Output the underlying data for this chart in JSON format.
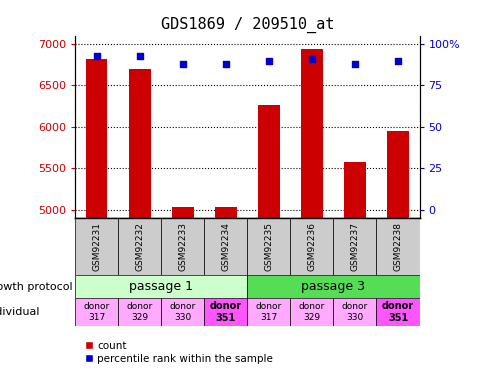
{
  "title": "GDS1869 / 209510_at",
  "samples": [
    "GSM92231",
    "GSM92232",
    "GSM92233",
    "GSM92234",
    "GSM92235",
    "GSM92236",
    "GSM92237",
    "GSM92238"
  ],
  "counts": [
    6820,
    6700,
    5030,
    5040,
    6270,
    6940,
    5580,
    5950
  ],
  "percentiles": [
    93,
    93,
    88,
    88,
    90,
    91,
    88,
    90
  ],
  "ylim_left": [
    4900,
    7100
  ],
  "ylim_right": [
    -5,
    105
  ],
  "yticks_left": [
    5000,
    5500,
    6000,
    6500,
    7000
  ],
  "yticks_right": [
    0,
    25,
    50,
    75,
    100
  ],
  "passage1_color": "#ccffcc",
  "passage3_color": "#55dd55",
  "passage1_label": "passage 1",
  "passage3_label": "passage 3",
  "donor_colors": [
    "#ffaaff",
    "#ffaaff",
    "#ffaaff",
    "#ff55ff"
  ],
  "donor_labels": [
    "donor\n317",
    "donor\n329",
    "donor\n330",
    "donor\n351"
  ],
  "bar_color": "#cc0000",
  "dot_color": "#0000cc",
  "left_label_color": "#cc0000",
  "right_label_color": "#0000cc",
  "sample_box_color": "#cccccc",
  "bar_width": 0.5
}
